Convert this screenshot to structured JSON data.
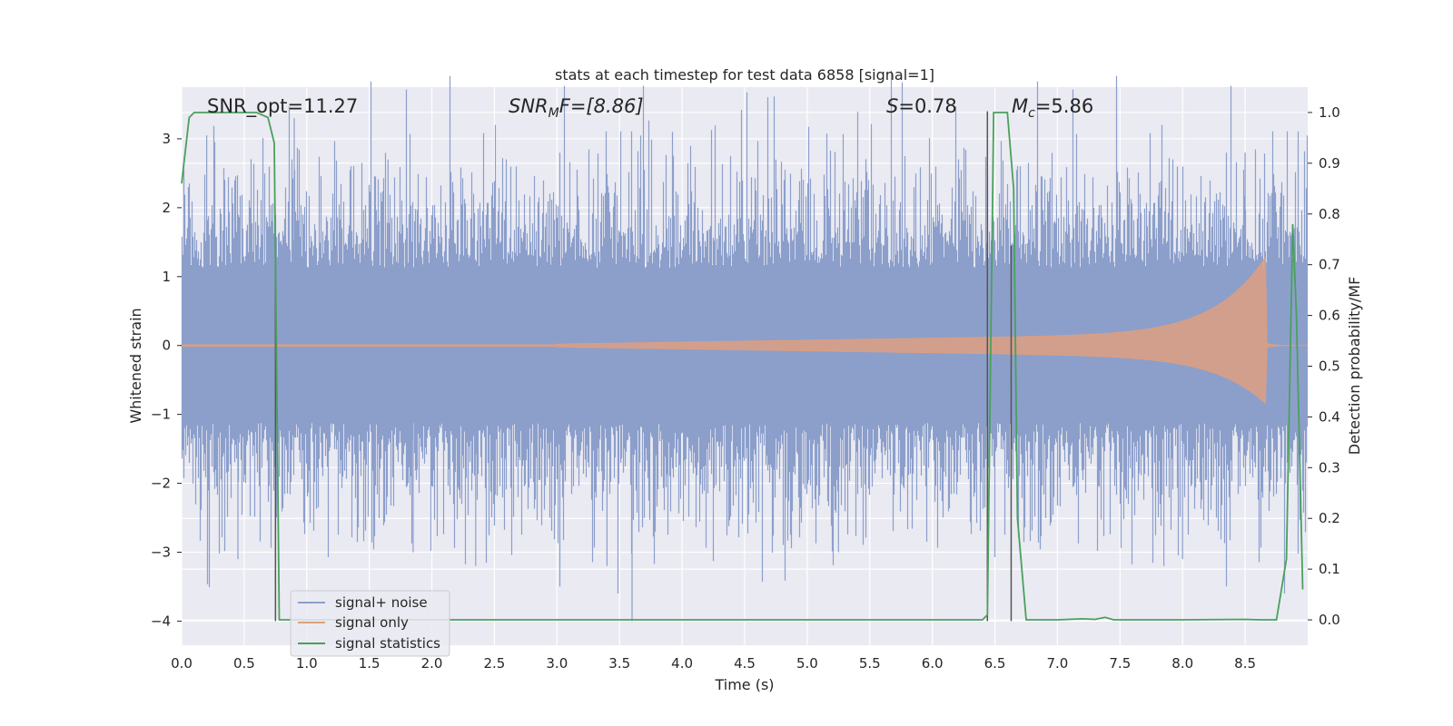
{
  "chart_data": {
    "type": "line",
    "title": "stats at each timestep for test data 6858 [signal=1]",
    "xlabel": "Time (s)",
    "ylabel_left": "Whitened strain",
    "ylabel_right": "Detection probability/MF",
    "xlim": [
      0,
      9.0
    ],
    "ylim_left": [
      -4.35,
      3.75
    ],
    "ylim_right": [
      -0.05,
      1.05
    ],
    "xticks": [
      "0.0",
      "0.5",
      "1.0",
      "1.5",
      "2.0",
      "2.5",
      "3.0",
      "3.5",
      "4.0",
      "4.5",
      "5.0",
      "5.5",
      "6.0",
      "6.5",
      "7.0",
      "7.5",
      "8.0",
      "8.5"
    ],
    "yticks_left": [
      "−4",
      "−3",
      "−2",
      "−1",
      "0",
      "1",
      "2",
      "3"
    ],
    "yticks_right": [
      "0.0",
      "0.1",
      "0.2",
      "0.3",
      "0.4",
      "0.5",
      "0.6",
      "0.7",
      "0.8",
      "0.9",
      "1.0"
    ],
    "grid": true,
    "legend_position": "lower-left",
    "annotations": [
      {
        "id": "snr_opt",
        "text": "SNR_opt=11.27",
        "x": 0.2
      },
      {
        "id": "snr_mf",
        "prefix": "SNR",
        "sub": "M",
        "suffix": "F=[8.86]",
        "x": 2.6
      },
      {
        "id": "s",
        "prefix": "S",
        "suffix": "=0.78",
        "x": 5.6
      },
      {
        "id": "mc",
        "prefix": "M",
        "sub": "c",
        "suffix": "=5.86",
        "x": 6.62
      }
    ],
    "vlines": [
      {
        "x": 0.75,
        "ymin": -4.0,
        "ymax": 1.25
      },
      {
        "x": 6.44,
        "ymin": -4.0,
        "ymax": 3.4
      },
      {
        "x": 6.63,
        "ymin": -4.0,
        "ymax": 1.45
      }
    ],
    "series": [
      {
        "name": "signal+ noise",
        "color": "#8c9fcb",
        "envelope_amplitude": 1.5,
        "spikes": [
          [
            0.2,
            3.05
          ],
          [
            0.9,
            3.3
          ],
          [
            3.6,
            -4.0
          ],
          [
            0.45,
            -3.1
          ],
          [
            1.85,
            -3.0
          ],
          [
            2.35,
            -3.2
          ],
          [
            3.4,
            -3.2
          ],
          [
            5.25,
            -3.0
          ],
          [
            7.85,
            -3.2
          ],
          [
            8.0,
            -3.1
          ],
          [
            1.65,
            2.7
          ],
          [
            4.75,
            2.7
          ],
          [
            8.5,
            2.8
          ]
        ]
      },
      {
        "name": "signal only",
        "color": "#dd9f80",
        "chirp": {
          "t_start": 3.0,
          "t_merge": 8.67,
          "peak_high": 1.3,
          "peak_low": -0.85
        }
      },
      {
        "name": "signal statistics",
        "color": "#4aa05c",
        "axis": "right",
        "points": [
          [
            0.0,
            0.86
          ],
          [
            0.06,
            0.99
          ],
          [
            0.1,
            1.0
          ],
          [
            0.2,
            1.0
          ],
          [
            0.4,
            1.0
          ],
          [
            0.6,
            1.0
          ],
          [
            0.69,
            0.99
          ],
          [
            0.74,
            0.94
          ],
          [
            0.78,
            0.0
          ],
          [
            1.0,
            0.0
          ],
          [
            3.0,
            0.0
          ],
          [
            5.0,
            0.0
          ],
          [
            6.4,
            0.0
          ],
          [
            6.44,
            0.01
          ],
          [
            6.49,
            1.0
          ],
          [
            6.6,
            1.0
          ],
          [
            6.65,
            0.85
          ],
          [
            6.68,
            0.2
          ],
          [
            6.75,
            0.0
          ],
          [
            7.0,
            0.0
          ],
          [
            7.2,
            0.002
          ],
          [
            7.3,
            0.001
          ],
          [
            7.38,
            0.005
          ],
          [
            7.45,
            0.0
          ],
          [
            8.0,
            0.0
          ],
          [
            8.5,
            0.001
          ],
          [
            8.62,
            0.0
          ],
          [
            8.75,
            0.0
          ],
          [
            8.83,
            0.12
          ],
          [
            8.88,
            0.78
          ],
          [
            8.91,
            0.6
          ],
          [
            8.96,
            0.06
          ]
        ]
      }
    ]
  }
}
